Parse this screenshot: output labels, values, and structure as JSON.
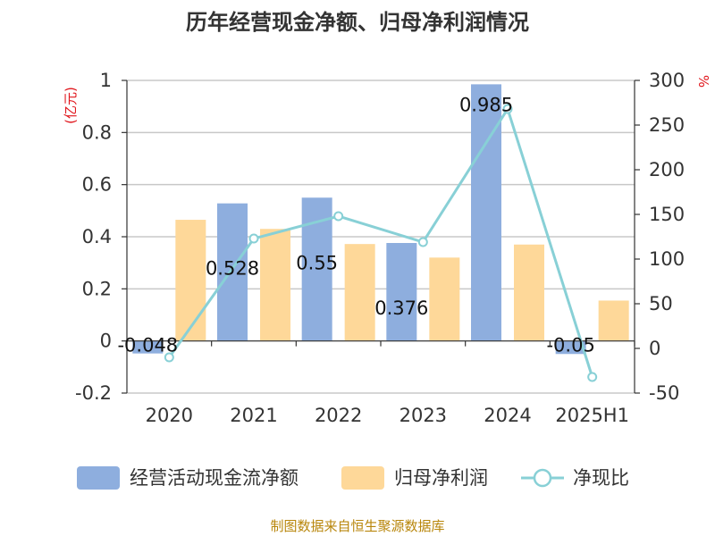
{
  "chart_data": {
    "type": "bar",
    "title": "历年经营现金净额、归母净利润情况",
    "categories": [
      "2020",
      "2021",
      "2022",
      "2023",
      "2024",
      "2025H1"
    ],
    "series": [
      {
        "name": "经营活动现金流净额",
        "type": "bar",
        "axis": "left",
        "color": "#8eaede",
        "values": [
          -0.048,
          0.528,
          0.55,
          0.376,
          0.985,
          -0.05
        ],
        "labels": [
          "-0.048",
          "0.528",
          "0.55",
          "0.376",
          "0.985",
          "-0.05"
        ]
      },
      {
        "name": "归母净利润",
        "type": "bar",
        "axis": "left",
        "color": "#fed899",
        "values": [
          0.465,
          0.43,
          0.372,
          0.32,
          0.37,
          0.155
        ]
      },
      {
        "name": "净现比",
        "type": "line",
        "axis": "right",
        "color": "#88d0d6",
        "values": [
          -10,
          123,
          148,
          119,
          268,
          -32
        ]
      }
    ],
    "yleft": {
      "unit": "(亿元)",
      "min": -0.2,
      "max": 1,
      "ticks": [
        1,
        0.8,
        0.6,
        0.4,
        0.2,
        0,
        -0.2
      ],
      "tick_labels": [
        "1",
        "0.8",
        "0.6",
        "0.4",
        "0.2",
        "0",
        "-0.2"
      ]
    },
    "yright": {
      "unit": "%",
      "min": -50,
      "max": 300,
      "ticks": [
        300,
        250,
        200,
        150,
        100,
        50,
        0,
        -50
      ],
      "tick_labels": [
        "300",
        "250",
        "200",
        "150",
        "100",
        "50",
        "0",
        "-50"
      ]
    },
    "grid": true,
    "legend_position": "bottom"
  },
  "source": "制图数据来自恒生聚源数据库"
}
